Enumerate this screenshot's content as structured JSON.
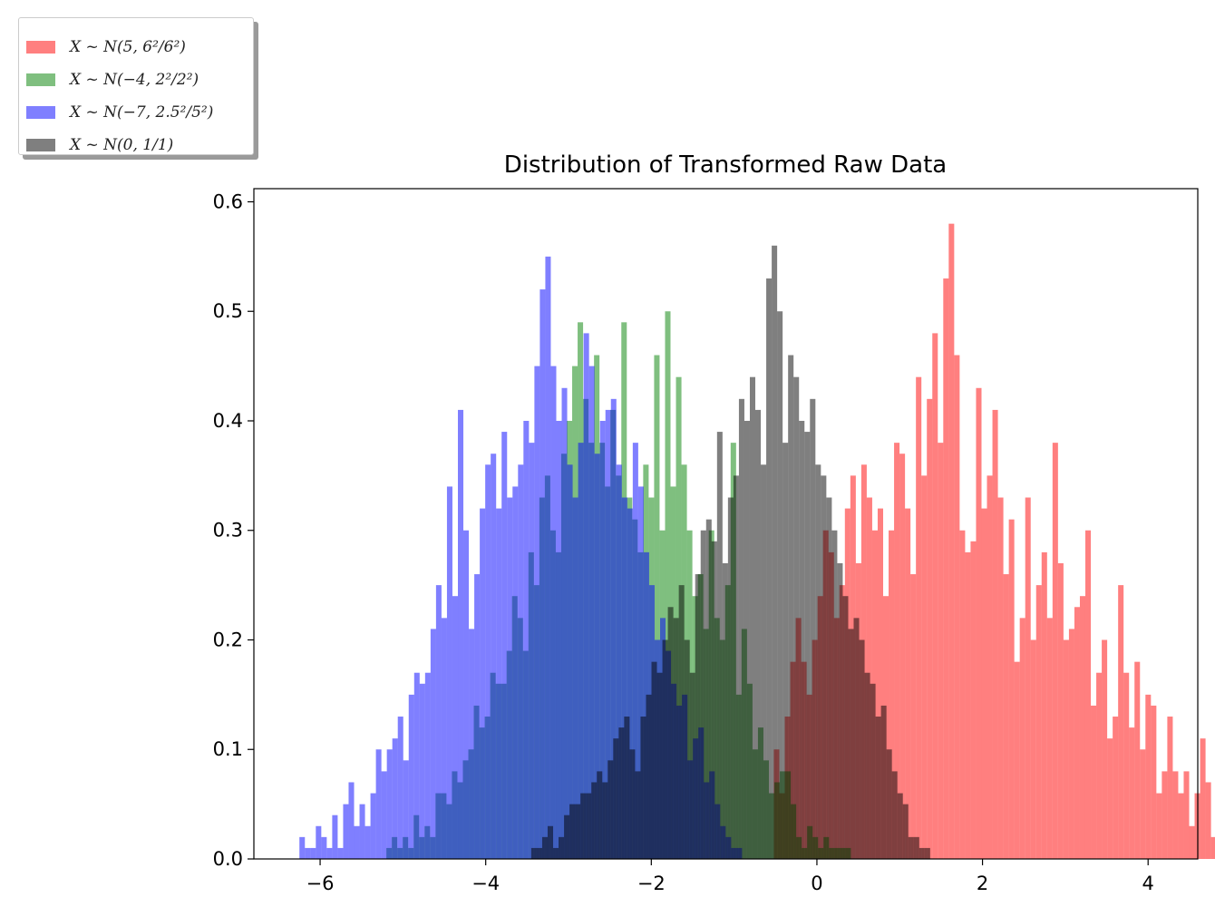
{
  "chart_data": {
    "type": "bar",
    "title": "Distribution of Transformed Raw Data",
    "xlabel": "",
    "ylabel": "",
    "xlim": [
      -6.8,
      4.6
    ],
    "ylim": [
      0,
      0.612
    ],
    "xticks": [
      -6,
      -4,
      -2,
      0,
      2,
      4
    ],
    "xtick_labels": [
      "−6",
      "−4",
      "−2",
      "0",
      "2",
      "4"
    ],
    "yticks": [
      0.0,
      0.1,
      0.2,
      0.3,
      0.4,
      0.5,
      0.6
    ],
    "ytick_labels": [
      "0.0",
      "0.1",
      "0.2",
      "0.3",
      "0.4",
      "0.5",
      "0.6"
    ],
    "grid": false,
    "legend_position": "top-left outside axes",
    "series": [
      {
        "name": "X ~ N(5, 6²/6²)",
        "color": "#ff0000",
        "alpha": 0.5,
        "kind": "histogram",
        "bin_width": 0.066,
        "bin_start": -0.52,
        "values": [
          0.1,
          0.06,
          0.13,
          0.18,
          0.22,
          0.18,
          0.15,
          0.2,
          0.24,
          0.3,
          0.28,
          0.22,
          0.25,
          0.32,
          0.35,
          0.27,
          0.36,
          0.33,
          0.3,
          0.32,
          0.24,
          0.3,
          0.38,
          0.37,
          0.32,
          0.26,
          0.44,
          0.35,
          0.42,
          0.48,
          0.38,
          0.53,
          0.58,
          0.46,
          0.3,
          0.28,
          0.29,
          0.43,
          0.32,
          0.35,
          0.41,
          0.33,
          0.26,
          0.31,
          0.18,
          0.22,
          0.33,
          0.2,
          0.25,
          0.28,
          0.22,
          0.38,
          0.27,
          0.2,
          0.21,
          0.23,
          0.24,
          0.3,
          0.14,
          0.17,
          0.2,
          0.11,
          0.13,
          0.25,
          0.17,
          0.12,
          0.18,
          0.1,
          0.15,
          0.14,
          0.06,
          0.08,
          0.13,
          0.08,
          0.06,
          0.08,
          0.03,
          0.06,
          0.11,
          0.07,
          0.02,
          0.05,
          0.03,
          0.04,
          0.02,
          0.03,
          0.03,
          0.02,
          0.03
        ]
      },
      {
        "name": "X ~ N(−4, 2²/2²)",
        "color": "#008000",
        "alpha": 0.5,
        "kind": "histogram",
        "bin_width": 0.066,
        "bin_start": -5.2,
        "values": [
          0.01,
          0.02,
          0.01,
          0.02,
          0.01,
          0.04,
          0.02,
          0.03,
          0.02,
          0.06,
          0.06,
          0.05,
          0.08,
          0.07,
          0.09,
          0.1,
          0.14,
          0.12,
          0.13,
          0.17,
          0.16,
          0.16,
          0.19,
          0.24,
          0.22,
          0.19,
          0.28,
          0.25,
          0.33,
          0.35,
          0.3,
          0.28,
          0.37,
          0.4,
          0.45,
          0.49,
          0.42,
          0.38,
          0.46,
          0.38,
          0.34,
          0.41,
          0.35,
          0.49,
          0.33,
          0.31,
          0.28,
          0.36,
          0.33,
          0.46,
          0.3,
          0.5,
          0.34,
          0.44,
          0.36,
          0.3,
          0.24,
          0.26,
          0.21,
          0.3,
          0.22,
          0.2,
          0.25,
          0.38,
          0.15,
          0.21,
          0.16,
          0.1,
          0.12,
          0.09,
          0.06,
          0.07,
          0.08,
          0.08,
          0.05,
          0.02,
          0.01,
          0.03,
          0.02,
          0.01,
          0.02,
          0.01,
          0.01,
          0.01,
          0.01
        ]
      },
      {
        "name": "X ~ N(−7, 2.5²/5²)",
        "color": "#0000ff",
        "alpha": 0.5,
        "kind": "histogram",
        "bin_width": 0.066,
        "bin_start": -6.25,
        "values": [
          0.02,
          0.01,
          0.01,
          0.03,
          0.02,
          0.01,
          0.04,
          0.01,
          0.05,
          0.07,
          0.03,
          0.05,
          0.03,
          0.06,
          0.1,
          0.08,
          0.1,
          0.11,
          0.13,
          0.09,
          0.15,
          0.17,
          0.16,
          0.17,
          0.21,
          0.25,
          0.22,
          0.34,
          0.24,
          0.41,
          0.3,
          0.21,
          0.26,
          0.32,
          0.36,
          0.37,
          0.32,
          0.39,
          0.33,
          0.34,
          0.36,
          0.4,
          0.38,
          0.45,
          0.52,
          0.55,
          0.45,
          0.4,
          0.43,
          0.36,
          0.33,
          0.38,
          0.48,
          0.45,
          0.37,
          0.4,
          0.41,
          0.42,
          0.36,
          0.33,
          0.32,
          0.38,
          0.34,
          0.28,
          0.25,
          0.2,
          0.22,
          0.19,
          0.16,
          0.14,
          0.15,
          0.09,
          0.11,
          0.12,
          0.07,
          0.08,
          0.05,
          0.03,
          0.02,
          0.01,
          0.01
        ]
      },
      {
        "name": "X ~ N(0, 1/1)",
        "color": "#000000",
        "alpha": 0.5,
        "kind": "histogram",
        "bin_width": 0.066,
        "bin_start": -3.45,
        "values": [
          0.01,
          0.01,
          0.02,
          0.03,
          0.01,
          0.02,
          0.04,
          0.05,
          0.05,
          0.06,
          0.06,
          0.07,
          0.08,
          0.07,
          0.09,
          0.11,
          0.12,
          0.13,
          0.1,
          0.08,
          0.13,
          0.15,
          0.18,
          0.17,
          0.2,
          0.23,
          0.22,
          0.25,
          0.2,
          0.17,
          0.26,
          0.3,
          0.31,
          0.29,
          0.39,
          0.27,
          0.33,
          0.35,
          0.42,
          0.4,
          0.44,
          0.41,
          0.36,
          0.53,
          0.56,
          0.5,
          0.38,
          0.46,
          0.44,
          0.4,
          0.39,
          0.42,
          0.36,
          0.35,
          0.33,
          0.3,
          0.27,
          0.24,
          0.21,
          0.22,
          0.2,
          0.17,
          0.16,
          0.13,
          0.14,
          0.1,
          0.08,
          0.06,
          0.05,
          0.02,
          0.02,
          0.01,
          0.01
        ]
      }
    ]
  }
}
